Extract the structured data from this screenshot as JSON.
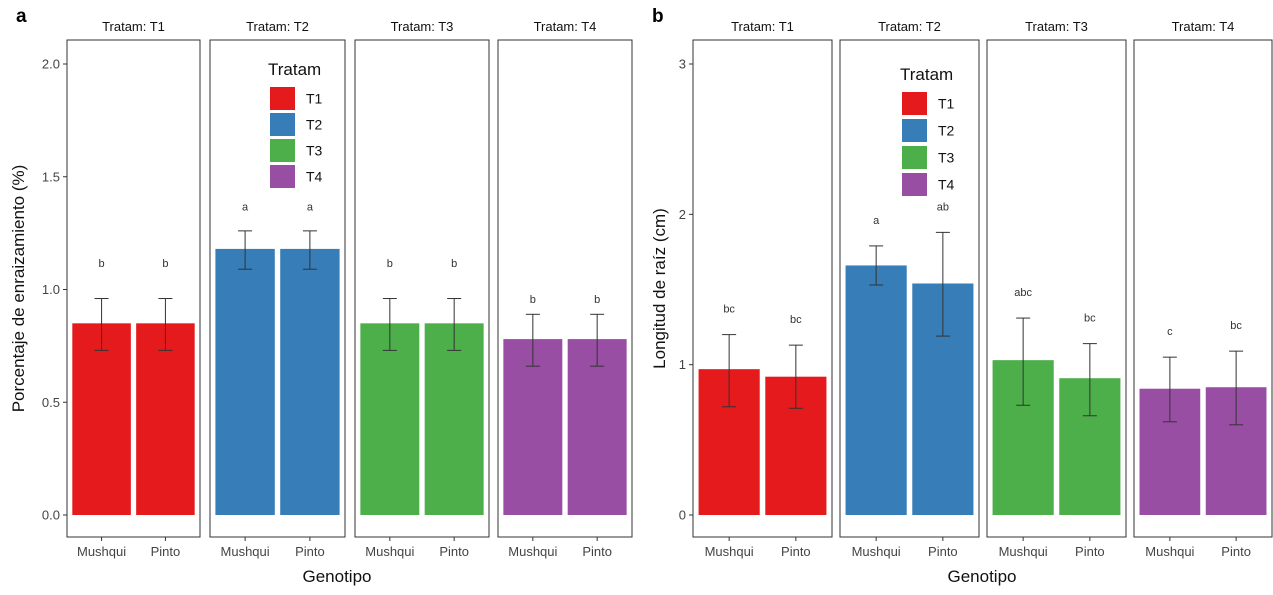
{
  "colors": {
    "T1": "#E41A1C",
    "T2": "#377EB8",
    "T3": "#4DAF4A",
    "T4": "#984EA3",
    "panel_border": "#333333",
    "error_bar": "#333333",
    "text": "#333333"
  },
  "chart_data": [
    {
      "type": "bar",
      "panel_label": "a",
      "facet_prefix": "Tratam: ",
      "facets": [
        "T1",
        "T2",
        "T3",
        "T4"
      ],
      "categories": [
        "Mushqui",
        "Pinto"
      ],
      "xlabel": "Genotipo",
      "ylabel": "Porcentaje de enraizamiento (%)",
      "ylim": [
        0,
        2.2
      ],
      "yticks": [
        "0.0",
        "0.5",
        "1.0",
        "1.5",
        "2.0"
      ],
      "ytick_values": [
        0,
        0.5,
        1.0,
        1.5,
        2.0
      ],
      "grid": false,
      "legend": {
        "title": "Tratam",
        "entries": [
          "T1",
          "T2",
          "T3",
          "T4"
        ],
        "placement": "inside T2 panel, top"
      },
      "series": [
        {
          "facet": "T1",
          "values": [
            0.85,
            0.85
          ],
          "err_low": [
            0.73,
            0.73
          ],
          "err_high": [
            0.96,
            0.96
          ],
          "labels": [
            "b",
            "b"
          ]
        },
        {
          "facet": "T2",
          "values": [
            1.18,
            1.18
          ],
          "err_low": [
            1.09,
            1.09
          ],
          "err_high": [
            1.26,
            1.26
          ],
          "labels": [
            "a",
            "a"
          ]
        },
        {
          "facet": "T3",
          "values": [
            0.85,
            0.85
          ],
          "err_low": [
            0.73,
            0.73
          ],
          "err_high": [
            0.96,
            0.96
          ],
          "labels": [
            "b",
            "b"
          ]
        },
        {
          "facet": "T4",
          "values": [
            0.78,
            0.78
          ],
          "err_low": [
            0.66,
            0.66
          ],
          "err_high": [
            0.89,
            0.89
          ],
          "labels": [
            "b",
            "b"
          ]
        }
      ],
      "label_values": [
        1.1,
        1.35,
        1.1,
        0.94
      ]
    },
    {
      "type": "bar",
      "panel_label": "b",
      "facet_prefix": "Tratam: ",
      "facets": [
        "T1",
        "T2",
        "T3",
        "T4"
      ],
      "categories": [
        "Mushqui",
        "Pinto"
      ],
      "xlabel": "Genotipo",
      "ylabel": "Longitud de raíz (cm)",
      "ylim": [
        0,
        3.3
      ],
      "yticks": [
        "0",
        "1",
        "2",
        "3"
      ],
      "ytick_values": [
        0,
        1,
        2,
        3
      ],
      "grid": false,
      "legend": {
        "title": "Tratam",
        "entries": [
          "T1",
          "T2",
          "T3",
          "T4"
        ],
        "placement": "inside T2 panel, top"
      },
      "series": [
        {
          "facet": "T1",
          "values": [
            0.97,
            0.92
          ],
          "err_low": [
            0.72,
            0.71
          ],
          "err_high": [
            1.2,
            1.13
          ],
          "labels": [
            "bc",
            "bc"
          ]
        },
        {
          "facet": "T2",
          "values": [
            1.66,
            1.54
          ],
          "err_low": [
            1.53,
            1.19
          ],
          "err_high": [
            1.79,
            1.88
          ],
          "labels": [
            "a",
            "ab"
          ]
        },
        {
          "facet": "T3",
          "values": [
            1.03,
            0.91
          ],
          "err_low": [
            0.73,
            0.66
          ],
          "err_high": [
            1.31,
            1.14
          ],
          "labels": [
            "abc",
            "bc"
          ]
        },
        {
          "facet": "T4",
          "values": [
            0.84,
            0.85
          ],
          "err_low": [
            0.62,
            0.6
          ],
          "err_high": [
            1.05,
            1.09
          ],
          "labels": [
            "c",
            "bc"
          ]
        }
      ]
    }
  ]
}
